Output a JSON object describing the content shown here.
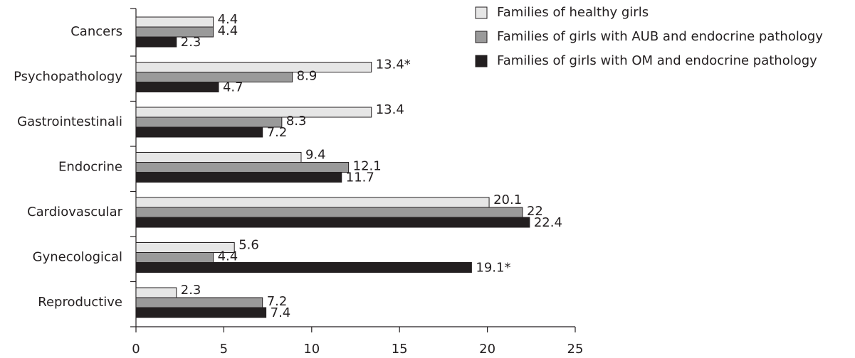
{
  "chart_data": {
    "type": "bar",
    "orientation": "horizontal",
    "categories": [
      "Cancers",
      "Psychopathology",
      "Gastrointestinali",
      "Endocrine",
      "Cardiovascular",
      "Gynecological",
      "Reproductive"
    ],
    "series": [
      {
        "name": "Families of healthy girls",
        "color": "#e6e6e6",
        "values": [
          4.4,
          13.4,
          13.4,
          9.4,
          20.1,
          5.6,
          2.3
        ],
        "value_labels": [
          "4.4",
          "13.4*",
          "13.4",
          "9.4",
          "20.1",
          "5.6",
          "2.3"
        ]
      },
      {
        "name": "Families of girls with AUB and endocrine pathology",
        "color": "#9a9a9a",
        "values": [
          4.4,
          8.9,
          8.3,
          12.1,
          22,
          4.4,
          7.2
        ],
        "value_labels": [
          "4.4",
          "8.9",
          "8.3",
          "12.1",
          "22",
          "4.4",
          "7.2"
        ]
      },
      {
        "name": "Families of girls with OM and endocrine pathology",
        "color": "#231f20",
        "values": [
          2.3,
          4.7,
          7.2,
          11.7,
          22.4,
          19.1,
          7.4
        ],
        "value_labels": [
          "2.3",
          "4.7",
          "7.2",
          "11.7",
          "22.4",
          "19.1*",
          "7.4"
        ]
      }
    ],
    "xlim": [
      0,
      25
    ],
    "xticks": [
      0,
      5,
      10,
      15,
      20,
      25
    ],
    "legend": "upper right"
  }
}
